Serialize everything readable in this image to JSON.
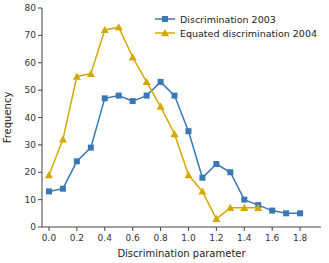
{
  "chart_data": {
    "type": "line",
    "xlabel": "Discrimination parameter",
    "ylabel": "Frequency",
    "series": [
      {
        "name": "Discrimination 2003",
        "color": "#3a78b5",
        "marker": "square",
        "x": [
          0.0,
          0.1,
          0.2,
          0.3,
          0.4,
          0.5,
          0.6,
          0.7,
          0.8,
          0.9,
          1.0,
          1.1,
          1.2,
          1.3,
          1.4,
          1.5,
          1.6,
          1.7,
          1.8
        ],
        "values": [
          13,
          14,
          24,
          29,
          47,
          48,
          46,
          48,
          53,
          48,
          35,
          18,
          23,
          20,
          10,
          8,
          6,
          5,
          5
        ]
      },
      {
        "name": "Equated discrimination 2004",
        "color": "#d4a800",
        "marker": "triangle",
        "x": [
          0.0,
          0.1,
          0.2,
          0.3,
          0.4,
          0.5,
          0.6,
          0.7,
          0.8,
          0.9,
          1.0,
          1.1,
          1.2,
          1.3,
          1.4,
          1.5
        ],
        "values": [
          19,
          32,
          55,
          56,
          72,
          73,
          62,
          53,
          44,
          34,
          19,
          13,
          3,
          7,
          7,
          7
        ]
      }
    ],
    "xlim": [
      -0.05,
      1.95
    ],
    "xticks": [
      {
        "value": 0,
        "label": "0.0"
      },
      0.2,
      0.4,
      0.6,
      0.8,
      {
        "value": 1.0,
        "label": "1.0"
      },
      1.2,
      1.4,
      1.6,
      1.8
    ],
    "ylim": [
      0,
      80
    ],
    "yticks": [
      0,
      10,
      20,
      30,
      40,
      50,
      60,
      70,
      80
    ],
    "grid": false,
    "legend": "upper right"
  }
}
